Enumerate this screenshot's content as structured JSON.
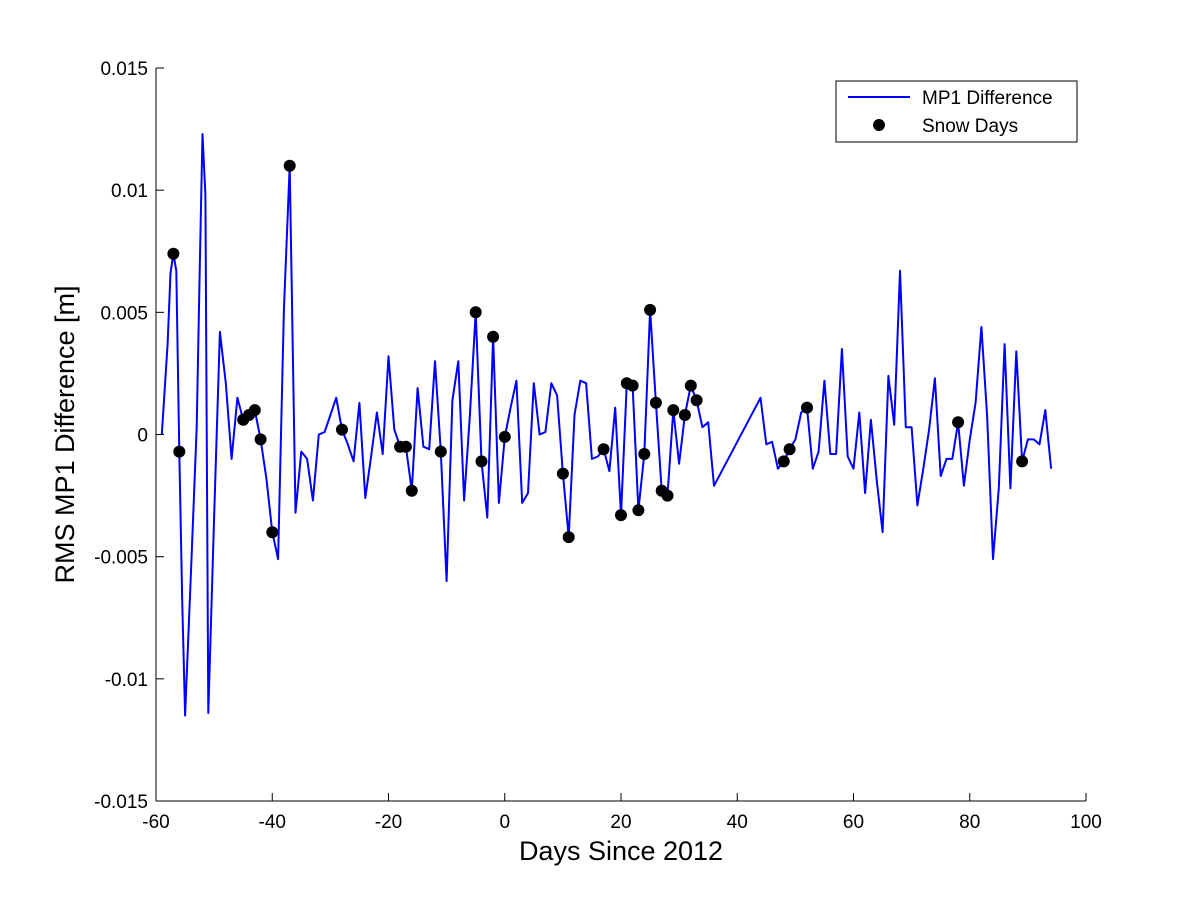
{
  "chart_data": {
    "type": "line",
    "title": "",
    "xlabel": "Days Since 2012",
    "ylabel": "RMS MP1 Difference [m]",
    "xlim": [
      -60,
      100
    ],
    "ylim": [
      -0.015,
      0.015
    ],
    "xticks": [
      -60,
      -40,
      -20,
      0,
      20,
      40,
      60,
      80,
      100
    ],
    "xtick_labels": [
      "-60",
      "-40",
      "-20",
      "0",
      "20",
      "40",
      "60",
      "80",
      "100"
    ],
    "yticks": [
      -0.015,
      -0.01,
      -0.005,
      0,
      0.005,
      0.01,
      0.015
    ],
    "ytick_labels": [
      "-0.015",
      "-0.01",
      "-0.005",
      "0",
      "0.005",
      "0.01",
      "0.015"
    ],
    "grid": false,
    "legend": {
      "placement": "top-right",
      "entries": [
        "MP1 Difference",
        "Snow Days"
      ]
    },
    "series": [
      {
        "name": "MP1 Difference",
        "kind": "line",
        "color": "#0000ff",
        "points": [
          [
            -59,
            0
          ],
          [
            -58,
            0.0037
          ],
          [
            -57.5,
            0.0066
          ],
          [
            -57,
            0.0074
          ],
          [
            -56.5,
            0.0067
          ],
          [
            -56,
            -0.0007
          ],
          [
            -55.5,
            -0.0068
          ],
          [
            -55,
            -0.0115
          ],
          [
            -54,
            -0.0057
          ],
          [
            -53,
            0.0003
          ],
          [
            -52.5,
            0.0065
          ],
          [
            -52,
            0.0123
          ],
          [
            -51.5,
            0.0098
          ],
          [
            -51,
            -0.0114
          ],
          [
            -50,
            -0.0034
          ],
          [
            -49,
            0.0042
          ],
          [
            -48,
            0.0021
          ],
          [
            -47,
            -0.001
          ],
          [
            -46,
            0.0015
          ],
          [
            -45,
            0.0006
          ],
          [
            -44,
            0.0008
          ],
          [
            -43,
            0.001
          ],
          [
            -42,
            -0.0002
          ],
          [
            -41,
            -0.0018
          ],
          [
            -40,
            -0.004
          ],
          [
            -39,
            -0.0051
          ],
          [
            -38,
            0.0051
          ],
          [
            -37,
            0.011
          ],
          [
            -36,
            -0.0032
          ],
          [
            -35,
            -0.0007
          ],
          [
            -34,
            -0.001
          ],
          [
            -33,
            -0.0027
          ],
          [
            -32,
            0
          ],
          [
            -31,
            0.0001
          ],
          [
            -30,
            0.0008
          ],
          [
            -29,
            0.0015
          ],
          [
            -28,
            0.0002
          ],
          [
            -27,
            -0.0004
          ],
          [
            -26,
            -0.0011
          ],
          [
            -25,
            0.0013
          ],
          [
            -24,
            -0.0026
          ],
          [
            -23,
            -0.0009
          ],
          [
            -22,
            0.0009
          ],
          [
            -21,
            -0.0008
          ],
          [
            -20,
            0.0032
          ],
          [
            -19,
            0.0002
          ],
          [
            -18,
            -0.0005
          ],
          [
            -17,
            -0.0005
          ],
          [
            -16,
            -0.0023
          ],
          [
            -15,
            0.0019
          ],
          [
            -14,
            -0.0005
          ],
          [
            -13,
            -0.0006
          ],
          [
            -12,
            0.003
          ],
          [
            -11,
            -0.0007
          ],
          [
            -10,
            -0.006
          ],
          [
            -9,
            0.0014
          ],
          [
            -8,
            0.003
          ],
          [
            -7,
            -0.0027
          ],
          [
            -6,
            0.0008
          ],
          [
            -5,
            0.005
          ],
          [
            -4,
            -0.0011
          ],
          [
            -3,
            -0.0034
          ],
          [
            -2,
            0.004
          ],
          [
            -1,
            -0.0028
          ],
          [
            0,
            -0.0001
          ],
          [
            1,
            0.0011
          ],
          [
            2,
            0.0022
          ],
          [
            3,
            -0.0028
          ],
          [
            4,
            -0.0024
          ],
          [
            5,
            0.0021
          ],
          [
            6,
            0
          ],
          [
            7,
            0.0001
          ],
          [
            8,
            0.0021
          ],
          [
            9,
            0.0016
          ],
          [
            10,
            -0.0016
          ],
          [
            11,
            -0.0042
          ],
          [
            12,
            0.0008
          ],
          [
            13,
            0.0022
          ],
          [
            14,
            0.0021
          ],
          [
            15,
            -0.001
          ],
          [
            16,
            -0.0009
          ],
          [
            17,
            -0.0006
          ],
          [
            18,
            -0.0015
          ],
          [
            19,
            0.0011
          ],
          [
            20,
            -0.0033
          ],
          [
            21,
            0.0021
          ],
          [
            22,
            0.002
          ],
          [
            23,
            -0.0031
          ],
          [
            24,
            -0.0008
          ],
          [
            25,
            0.0051
          ],
          [
            26,
            0.0013
          ],
          [
            27,
            -0.0023
          ],
          [
            28,
            -0.0025
          ],
          [
            29,
            0.001
          ],
          [
            30,
            -0.0012
          ],
          [
            31,
            0.0008
          ],
          [
            32,
            0.002
          ],
          [
            33,
            0.0014
          ],
          [
            34,
            0.0003
          ],
          [
            35,
            0.0005
          ],
          [
            36,
            -0.0021
          ],
          [
            44,
            0.0015
          ],
          [
            45,
            -0.0004
          ],
          [
            46,
            -0.0003
          ],
          [
            47,
            -0.0014
          ],
          [
            48,
            -0.0011
          ],
          [
            49,
            -0.0006
          ],
          [
            50,
            -0.0002
          ],
          [
            51,
            0.0009
          ],
          [
            52,
            0.0011
          ],
          [
            53,
            -0.0014
          ],
          [
            54,
            -0.0007
          ],
          [
            55,
            0.0022
          ],
          [
            56,
            -0.0008
          ],
          [
            57,
            -0.0008
          ],
          [
            58,
            0.0035
          ],
          [
            59,
            -0.0009
          ],
          [
            60,
            -0.0014
          ],
          [
            61,
            0.0009
          ],
          [
            62,
            -0.0024
          ],
          [
            63,
            0.0006
          ],
          [
            64,
            -0.0019
          ],
          [
            65,
            -0.004
          ],
          [
            66,
            0.0024
          ],
          [
            67,
            0.0004
          ],
          [
            68,
            0.0067
          ],
          [
            69,
            0.0003
          ],
          [
            70,
            0.0003
          ],
          [
            71,
            -0.0029
          ],
          [
            72,
            -0.0014
          ],
          [
            73,
            0.0002
          ],
          [
            74,
            0.0023
          ],
          [
            75,
            -0.0017
          ],
          [
            76,
            -0.001
          ],
          [
            77,
            -0.001
          ],
          [
            78,
            0.0005
          ],
          [
            79,
            -0.0021
          ],
          [
            80,
            -0.0002
          ],
          [
            81,
            0.0013
          ],
          [
            82,
            0.0044
          ],
          [
            83,
            0.0007
          ],
          [
            84,
            -0.0051
          ],
          [
            85,
            -0.0022
          ],
          [
            86,
            0.0037
          ],
          [
            87,
            -0.0022
          ],
          [
            88,
            0.0034
          ],
          [
            89,
            -0.0011
          ],
          [
            90,
            -0.0002
          ],
          [
            91,
            -0.0002
          ],
          [
            92,
            -0.0004
          ],
          [
            93,
            0.001
          ],
          [
            94,
            -0.0014
          ]
        ]
      },
      {
        "name": "Snow Days",
        "kind": "scatter",
        "marker": "circle",
        "color": "#000000",
        "points": [
          [
            -57,
            0.0074
          ],
          [
            -56,
            -0.0007
          ],
          [
            -45,
            0.0006
          ],
          [
            -44,
            0.0008
          ],
          [
            -43,
            0.001
          ],
          [
            -42,
            -0.0002
          ],
          [
            -40,
            -0.004
          ],
          [
            -37,
            0.011
          ],
          [
            -28,
            0.0002
          ],
          [
            -18,
            -0.0005
          ],
          [
            -17,
            -0.0005
          ],
          [
            -16,
            -0.0023
          ],
          [
            -11,
            -0.0007
          ],
          [
            -5,
            0.005
          ],
          [
            -4,
            -0.0011
          ],
          [
            -2,
            0.004
          ],
          [
            0,
            -0.0001
          ],
          [
            10,
            -0.0016
          ],
          [
            11,
            -0.0042
          ],
          [
            17,
            -0.0006
          ],
          [
            20,
            -0.0033
          ],
          [
            21,
            0.0021
          ],
          [
            22,
            0.002
          ],
          [
            23,
            -0.0031
          ],
          [
            24,
            -0.0008
          ],
          [
            25,
            0.0051
          ],
          [
            26,
            0.0013
          ],
          [
            27,
            -0.0023
          ],
          [
            28,
            -0.0025
          ],
          [
            29,
            0.001
          ],
          [
            31,
            0.0008
          ],
          [
            32,
            0.002
          ],
          [
            33,
            0.0014
          ],
          [
            48,
            -0.0011
          ],
          [
            49,
            -0.0006
          ],
          [
            52,
            0.0011
          ],
          [
            78,
            0.0005
          ],
          [
            89,
            -0.0011
          ]
        ]
      }
    ]
  }
}
